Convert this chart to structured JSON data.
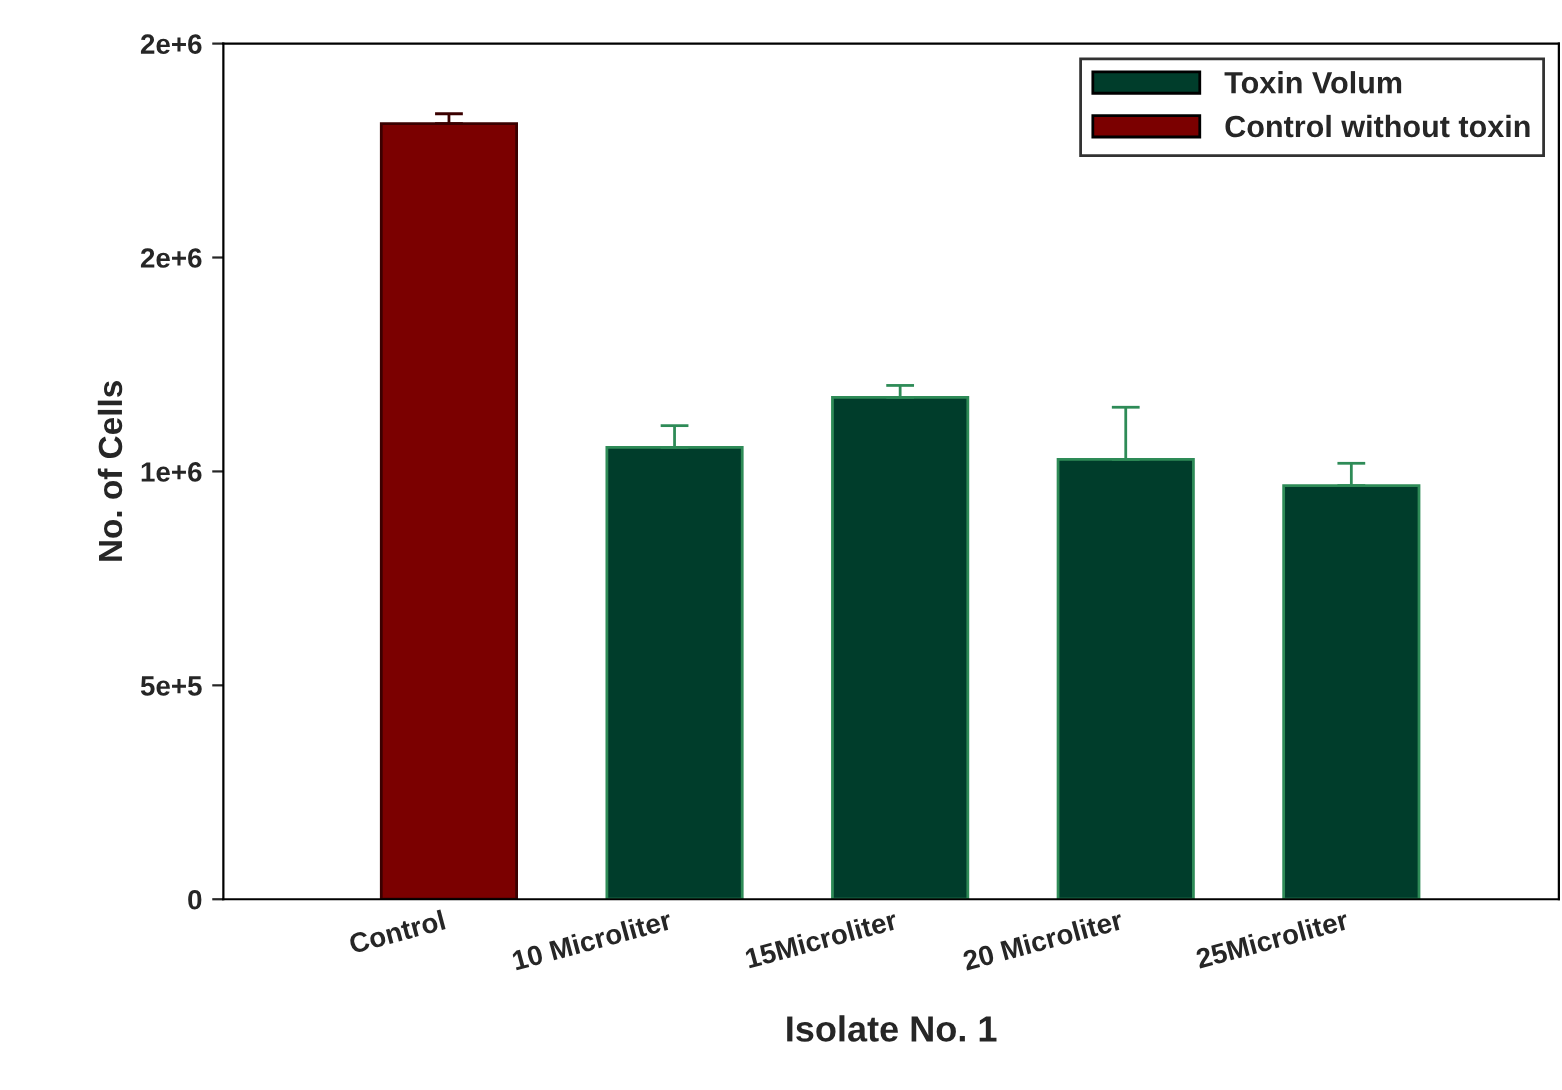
{
  "chart_data": {
    "type": "bar",
    "xlabel": "Isolate No. 1",
    "ylabel": "No. of Cells",
    "categories": [
      "Control",
      "10 Microliter",
      "15Microliter",
      "20 Microliter",
      "25Microliter"
    ],
    "series": [
      {
        "name": "Toxin Volum",
        "color": "#003d2b",
        "values": [
          null,
          1056000,
          1173000,
          1028000,
          967000
        ],
        "errors": [
          null,
          [
            1056000,
            1107000
          ],
          [
            1173000,
            1201000
          ],
          [
            1028000,
            1150000
          ],
          [
            967000,
            1019000
          ]
        ]
      },
      {
        "name": "Control without toxin",
        "color": "#7b0000",
        "values": [
          1813000,
          null,
          null,
          null,
          null
        ],
        "errors": [
          [
            1813000,
            1836000
          ],
          null,
          null,
          null,
          null
        ]
      }
    ],
    "ylim": [
      0,
      2000000
    ],
    "yticks": [
      0,
      {
        "value": 500000,
        "label": "5e+5"
      },
      {
        "value": 1000000,
        "label": "1e+6"
      },
      {
        "value": 1500000,
        "label": "2e+6"
      },
      {
        "value": 2000000,
        "label": "2e+6"
      }
    ],
    "legend": "top right",
    "grid": false
  }
}
